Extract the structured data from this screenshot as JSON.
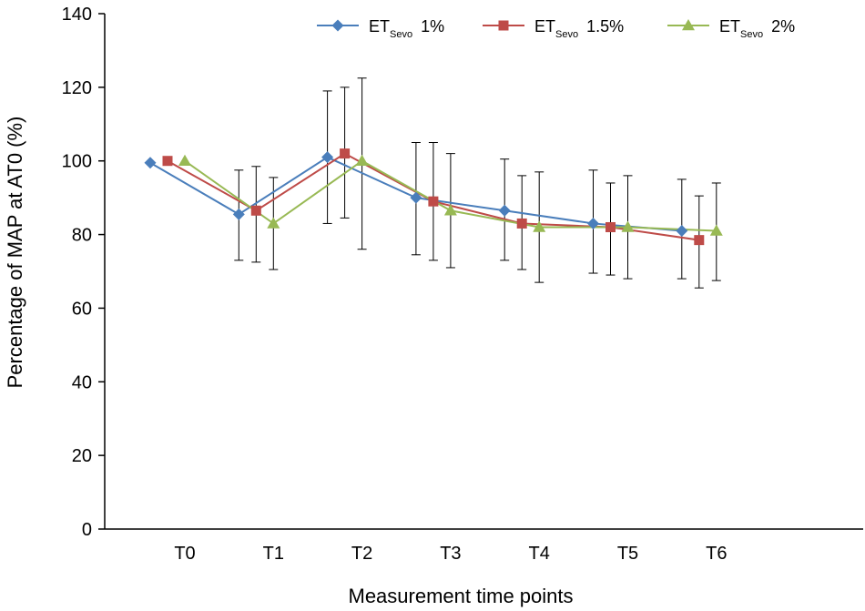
{
  "chart_data": {
    "type": "line",
    "title": "",
    "xlabel": "Measurement time points",
    "ylabel": "Percentage of MAP at AT0 (%)",
    "ylim": [
      0,
      140
    ],
    "yticks": [
      0,
      20,
      40,
      60,
      80,
      100,
      120,
      140
    ],
    "categories": [
      "T0",
      "T1",
      "T2",
      "T3",
      "T4",
      "T5",
      "T6"
    ],
    "grid": false,
    "legend_position": "top-right",
    "series": [
      {
        "name": "ET",
        "subscript": "Sevo",
        "suffix": "1%",
        "color": "#4a7ebb",
        "marker": "diamond",
        "values": [
          99.5,
          85.5,
          101,
          90,
          86.5,
          83,
          81
        ],
        "error_low": [
          null,
          73,
          83,
          74.5,
          73,
          69.5,
          68
        ],
        "error_high": [
          null,
          97.5,
          119,
          105,
          100.5,
          97.5,
          95
        ]
      },
      {
        "name": "ET",
        "subscript": "Sevo",
        "suffix": "1.5%",
        "color": "#be4b48",
        "marker": "square",
        "values": [
          100,
          86.5,
          102,
          89,
          83,
          82,
          78.5
        ],
        "error_low": [
          null,
          72.5,
          84.5,
          73,
          70.5,
          69,
          65.5
        ],
        "error_high": [
          null,
          98.5,
          120,
          105,
          96,
          94,
          90.5
        ]
      },
      {
        "name": "ET",
        "subscript": "Sevo",
        "suffix": "2%",
        "color": "#98b954",
        "marker": "triangle",
        "values": [
          100,
          83,
          100,
          86.5,
          82,
          82,
          81
        ],
        "error_low": [
          null,
          70.5,
          76,
          71,
          67,
          68,
          67.5
        ],
        "error_high": [
          null,
          95.5,
          122.5,
          102,
          97,
          96,
          94
        ]
      }
    ]
  }
}
